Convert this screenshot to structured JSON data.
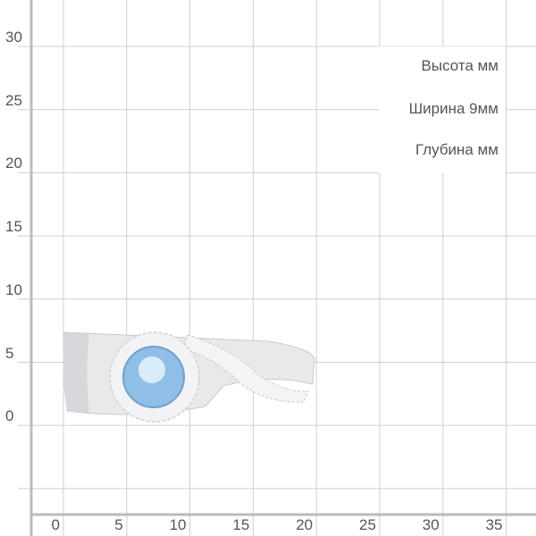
{
  "x_ticks": [
    "0",
    "5",
    "10",
    "15",
    "20",
    "25",
    "30",
    "35"
  ],
  "y_ticks": [
    "30",
    "25",
    "20",
    "15",
    "10",
    "5",
    "0"
  ],
  "dimensions": {
    "height_label": "Высота  мм",
    "width_label": "Ширина  9мм",
    "depth_label": "Глубина  мм"
  },
  "product": {
    "gem_color": "#8fbfe6",
    "metal_color": "#e4e6e8"
  }
}
